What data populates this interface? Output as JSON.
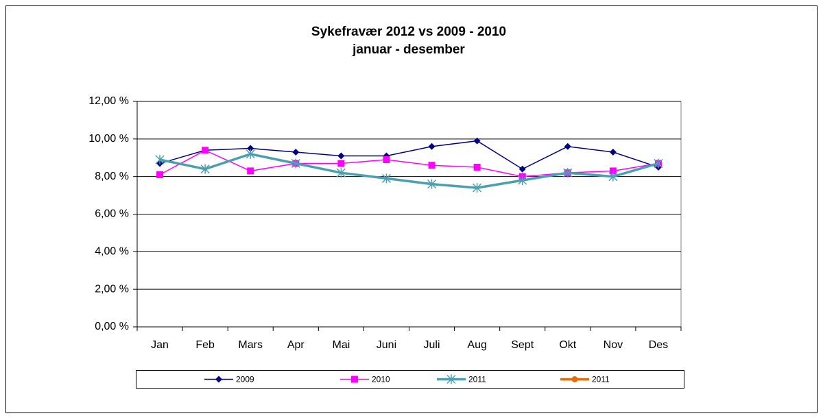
{
  "chart_data": {
    "type": "line",
    "title": "Sykefravær 2012 vs 2009 - 2010",
    "subtitle": "januar - desember",
    "categories": [
      "Jan",
      "Feb",
      "Mars",
      "Apr",
      "Mai",
      "Juni",
      "Juli",
      "Aug",
      "Sept",
      "Okt",
      "Nov",
      "Des"
    ],
    "series": [
      {
        "name": "2009",
        "color": "#000080",
        "marker": "diamond",
        "values": [
          8.7,
          9.4,
          9.5,
          9.3,
          9.1,
          9.1,
          9.6,
          9.9,
          8.4,
          9.6,
          9.3,
          8.5
        ]
      },
      {
        "name": "2010",
        "color": "#ff00ff",
        "marker": "square",
        "values": [
          8.1,
          9.4,
          8.3,
          8.7,
          8.7,
          8.9,
          8.6,
          8.5,
          8.0,
          8.2,
          8.3,
          8.7
        ]
      },
      {
        "name": "2011",
        "color": "#4a9fb0",
        "marker": "star",
        "values": [
          8.9,
          8.4,
          9.2,
          8.7,
          8.2,
          7.9,
          7.6,
          7.4,
          7.8,
          8.2,
          8.0,
          8.7
        ]
      },
      {
        "name": "2011",
        "color": "#e36c09",
        "marker": "circle",
        "values": [
          null,
          null,
          null,
          null,
          null,
          null,
          null,
          null,
          null,
          null,
          null,
          null
        ]
      }
    ],
    "ylim": [
      0,
      12
    ],
    "yticks": [
      {
        "value": 0,
        "label": "0,00 %"
      },
      {
        "value": 2,
        "label": "2,00 %"
      },
      {
        "value": 4,
        "label": "4,00 %"
      },
      {
        "value": 6,
        "label": "6,00 %"
      },
      {
        "value": 8,
        "label": "8,00 %"
      },
      {
        "value": 10,
        "label": "10,00 %"
      },
      {
        "value": 12,
        "label": "12,00 %"
      }
    ],
    "grid": true,
    "legend": "bottom"
  }
}
